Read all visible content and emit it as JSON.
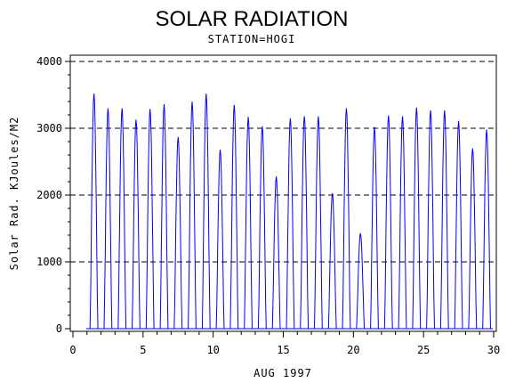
{
  "chart_data": {
    "type": "line",
    "title": "SOLAR RADIATION",
    "subtitle": "STATION=HOGI",
    "xlabel": "AUG 1997",
    "ylabel": "Solar Rad. KJoules/M2",
    "xlim": [
      0,
      30
    ],
    "ylim": [
      0,
      4000
    ],
    "x_ticks": [
      0,
      5,
      10,
      15,
      20,
      25,
      30
    ],
    "y_ticks": [
      0,
      1000,
      2000,
      3000,
      4000
    ],
    "grid": "horizontal dashed at 1000, 2000, 3000, 4000",
    "series_color": "#0000ff",
    "daily_peaks": [
      {
        "day": 1,
        "peak": 3520
      },
      {
        "day": 2,
        "peak": 3300
      },
      {
        "day": 3,
        "peak": 3300
      },
      {
        "day": 4,
        "peak": 3130
      },
      {
        "day": 5,
        "peak": 3290
      },
      {
        "day": 6,
        "peak": 3360
      },
      {
        "day": 7,
        "peak": 2870
      },
      {
        "day": 8,
        "peak": 3400
      },
      {
        "day": 9,
        "peak": 3520
      },
      {
        "day": 10,
        "peak": 2680
      },
      {
        "day": 11,
        "peak": 3350
      },
      {
        "day": 12,
        "peak": 3170
      },
      {
        "day": 13,
        "peak": 3030
      },
      {
        "day": 14,
        "peak": 2280
      },
      {
        "day": 15,
        "peak": 3150
      },
      {
        "day": 16,
        "peak": 3180
      },
      {
        "day": 17,
        "peak": 3180
      },
      {
        "day": 18,
        "peak": 2030
      },
      {
        "day": 19,
        "peak": 3300
      },
      {
        "day": 20,
        "peak": 1430
      },
      {
        "day": 21,
        "peak": 3020
      },
      {
        "day": 22,
        "peak": 3190
      },
      {
        "day": 23,
        "peak": 3180
      },
      {
        "day": 24,
        "peak": 3310
      },
      {
        "day": 25,
        "peak": 3270
      },
      {
        "day": 26,
        "peak": 3270
      },
      {
        "day": 27,
        "peak": 3110
      },
      {
        "day": 28,
        "peak": 2700
      },
      {
        "day": 29,
        "peak": 2980
      }
    ]
  }
}
